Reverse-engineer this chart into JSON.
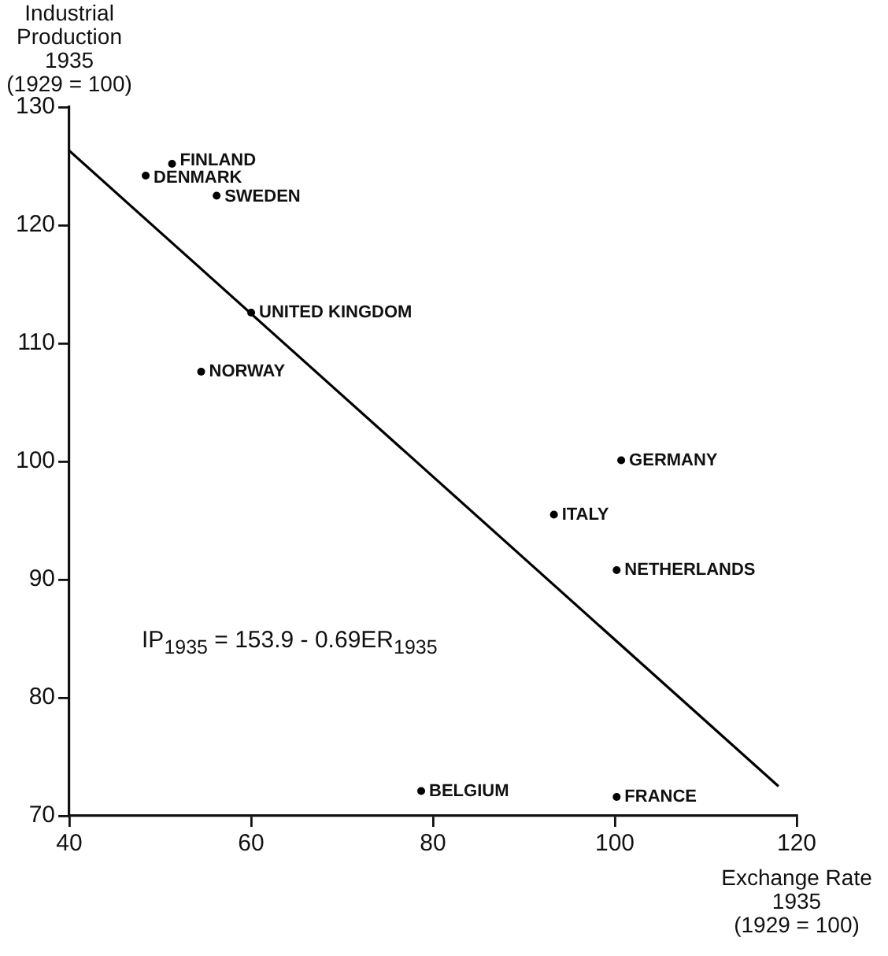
{
  "chart_data": {
    "type": "scatter",
    "xlabel": "Exchange Rate\n1935\n(1929 = 100)",
    "ylabel": "Industrial\nProduction\n1935\n(1929 = 100)",
    "xlim": [
      40,
      120
    ],
    "xticks": [
      40,
      60,
      80,
      100,
      120
    ],
    "ylim": [
      70,
      130
    ],
    "yticks": [
      70,
      80,
      90,
      100,
      110,
      120,
      130
    ],
    "grid": false,
    "legend": false,
    "marker": "circle",
    "annotations": [
      "IP$_{1935}$ = 153.9 - 0.69ER$_{1935}$"
    ],
    "series": [
      {
        "name": "FINLAND",
        "color": "#000000",
        "x": [
          51.3
        ],
        "values": [
          125.2
        ]
      },
      {
        "name": "DENMARK",
        "color": "#000000",
        "x": [
          48.4
        ],
        "values": [
          124.2
        ]
      },
      {
        "name": "SWEDEN",
        "color": "#000000",
        "x": [
          56.2
        ],
        "values": [
          122.5
        ]
      },
      {
        "name": "UNITED KINGDOM",
        "color": "#000000",
        "x": [
          60.0
        ],
        "values": [
          112.6
        ]
      },
      {
        "name": "NORWAY",
        "color": "#000000",
        "x": [
          54.5
        ],
        "values": [
          107.6
        ]
      },
      {
        "name": "GERMANY",
        "color": "#000000",
        "x": [
          100.7
        ],
        "values": [
          100.1
        ]
      },
      {
        "name": "ITALY",
        "color": "#000000",
        "x": [
          93.3
        ],
        "values": [
          95.5
        ]
      },
      {
        "name": "NETHERLANDS",
        "color": "#000000",
        "x": [
          100.2
        ],
        "values": [
          90.8
        ]
      },
      {
        "name": "BELGIUM",
        "color": "#000000",
        "x": [
          78.7
        ],
        "values": [
          72.1
        ]
      },
      {
        "name": "FRANCE",
        "color": "#000000",
        "x": [
          100.2
        ],
        "values": [
          71.6
        ]
      },
      {
        "type": "line",
        "marker": "none",
        "color": "#000000",
        "x": [
          40,
          118
        ],
        "values": [
          126.3,
          72.5
        ]
      }
    ]
  }
}
